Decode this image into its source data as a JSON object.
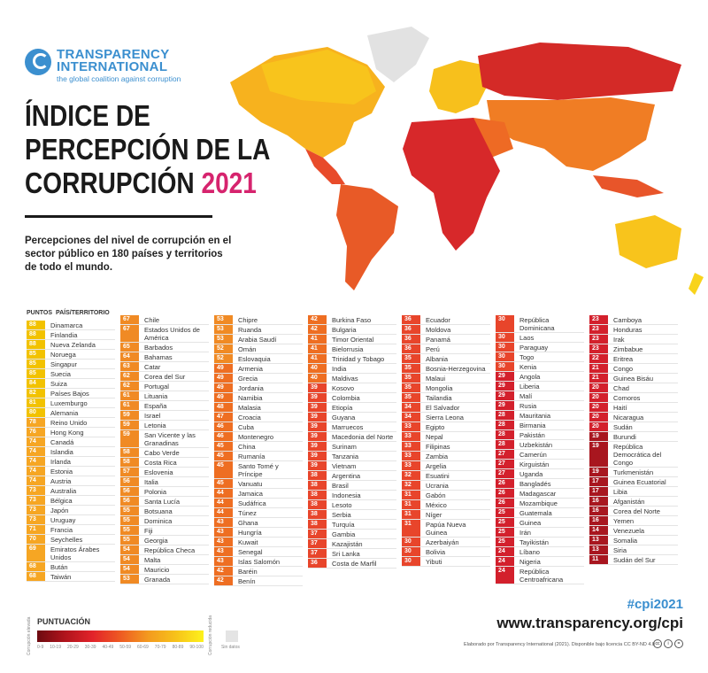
{
  "logo": {
    "line1": "TRANSPARENCY",
    "line2": "INTERNATIONAL",
    "tagline": "the global coalition against corruption"
  },
  "title": {
    "line1": "ÍNDICE DE",
    "line2": "PERCEPCIÓN DE LA",
    "line3": "CORRUPCIÓN",
    "year": "2021"
  },
  "subtitle": "Percepciones del nivel de corrupción en el sector público en 180 países y territorios de todo el mundo.",
  "table_header": {
    "score": "PUNTOS",
    "country": "PAÍS/TERRITORIO"
  },
  "colors": {
    "brand_blue": "#3b8fcf",
    "year_magenta": "#d6246e",
    "no_data": "#e4e4e4"
  },
  "columns": [
    [
      [
        88,
        "Dinamarca"
      ],
      [
        88,
        "Finlandia"
      ],
      [
        88,
        "Nueva Zelanda"
      ],
      [
        85,
        "Noruega"
      ],
      [
        85,
        "Singapur"
      ],
      [
        85,
        "Suecia"
      ],
      [
        84,
        "Suiza"
      ],
      [
        82,
        "Países Bajos"
      ],
      [
        81,
        "Luxemburgo"
      ],
      [
        80,
        "Alemania"
      ],
      [
        78,
        "Reino Unido"
      ],
      [
        76,
        "Hong Kong"
      ],
      [
        74,
        "Canadá"
      ],
      [
        74,
        "Islandia"
      ],
      [
        74,
        "Irlanda"
      ],
      [
        74,
        "Estonia"
      ],
      [
        74,
        "Austria"
      ],
      [
        73,
        "Australia"
      ],
      [
        73,
        "Bélgica"
      ],
      [
        73,
        "Japón"
      ],
      [
        73,
        "Uruguay"
      ],
      [
        71,
        "Francia"
      ],
      [
        70,
        "Seychelles"
      ],
      [
        69,
        "Emiratos Árabes Unidos"
      ],
      [
        68,
        "Bután"
      ],
      [
        68,
        "Taiwán"
      ]
    ],
    [
      [
        67,
        "Chile"
      ],
      [
        67,
        "Estados Unidos de América"
      ],
      [
        65,
        "Barbados"
      ],
      [
        64,
        "Bahamas"
      ],
      [
        63,
        "Catar"
      ],
      [
        62,
        "Corea del Sur"
      ],
      [
        62,
        "Portugal"
      ],
      [
        61,
        "Lituania"
      ],
      [
        61,
        "España"
      ],
      [
        59,
        "Israel"
      ],
      [
        59,
        "Letonia"
      ],
      [
        59,
        "San Vicente y las Granadinas"
      ],
      [
        58,
        "Cabo Verde"
      ],
      [
        58,
        "Costa Rica"
      ],
      [
        57,
        "Eslovenia"
      ],
      [
        56,
        "Italia"
      ],
      [
        56,
        "Polonia"
      ],
      [
        56,
        "Santa Lucía"
      ],
      [
        55,
        "Botsuana"
      ],
      [
        55,
        "Dominica"
      ],
      [
        55,
        "Fiji"
      ],
      [
        55,
        "Georgia"
      ],
      [
        54,
        "República Checa"
      ],
      [
        54,
        "Malta"
      ],
      [
        54,
        "Mauricio"
      ],
      [
        53,
        "Granada"
      ]
    ],
    [
      [
        53,
        "Chipre"
      ],
      [
        53,
        "Ruanda"
      ],
      [
        53,
        "Arabia Saudí"
      ],
      [
        52,
        "Omán"
      ],
      [
        52,
        "Eslovaquia"
      ],
      [
        49,
        "Armenia"
      ],
      [
        49,
        "Grecia"
      ],
      [
        49,
        "Jordania"
      ],
      [
        49,
        "Namibia"
      ],
      [
        48,
        "Malasia"
      ],
      [
        47,
        "Croacia"
      ],
      [
        46,
        "Cuba"
      ],
      [
        46,
        "Montenegro"
      ],
      [
        45,
        "China"
      ],
      [
        45,
        "Rumanía"
      ],
      [
        45,
        "Santo Tomé y Príncipe"
      ],
      [
        45,
        "Vanuatu"
      ],
      [
        44,
        "Jamaica"
      ],
      [
        44,
        "Sudáfrica"
      ],
      [
        44,
        "Túnez"
      ],
      [
        43,
        "Ghana"
      ],
      [
        43,
        "Hungría"
      ],
      [
        43,
        "Kuwait"
      ],
      [
        43,
        "Senegal"
      ],
      [
        43,
        "Islas Salomón"
      ],
      [
        42,
        "Baréin"
      ],
      [
        42,
        "Benín"
      ]
    ],
    [
      [
        42,
        "Burkina Faso"
      ],
      [
        42,
        "Bulgaria"
      ],
      [
        41,
        "Timor Oriental"
      ],
      [
        41,
        "Bielorrusia"
      ],
      [
        41,
        "Trinidad y Tobago"
      ],
      [
        40,
        "India"
      ],
      [
        40,
        "Maldivas"
      ],
      [
        39,
        "Kosovo"
      ],
      [
        39,
        "Colombia"
      ],
      [
        39,
        "Etiopía"
      ],
      [
        39,
        "Guyana"
      ],
      [
        39,
        "Marruecos"
      ],
      [
        39,
        "Macedonia del Norte"
      ],
      [
        39,
        "Surinam"
      ],
      [
        39,
        "Tanzania"
      ],
      [
        39,
        "Vietnam"
      ],
      [
        38,
        "Argentina"
      ],
      [
        38,
        "Brasil"
      ],
      [
        38,
        "Indonesia"
      ],
      [
        38,
        "Lesoto"
      ],
      [
        38,
        "Serbia"
      ],
      [
        38,
        "Turquía"
      ],
      [
        37,
        "Gambia"
      ],
      [
        37,
        "Kazajistán"
      ],
      [
        37,
        "Sri Lanka"
      ],
      [
        36,
        "Costa de Marfil"
      ]
    ],
    [
      [
        36,
        "Ecuador"
      ],
      [
        36,
        "Moldova"
      ],
      [
        36,
        "Panamá"
      ],
      [
        36,
        "Perú"
      ],
      [
        35,
        "Albania"
      ],
      [
        35,
        "Bosnia-Herzegovina"
      ],
      [
        35,
        "Malaui"
      ],
      [
        35,
        "Mongolia"
      ],
      [
        35,
        "Tailandia"
      ],
      [
        34,
        "El Salvador"
      ],
      [
        34,
        "Sierra Leona"
      ],
      [
        33,
        "Egipto"
      ],
      [
        33,
        "Nepal"
      ],
      [
        33,
        "Filipinas"
      ],
      [
        33,
        "Zambia"
      ],
      [
        33,
        "Argelia"
      ],
      [
        32,
        "Esuatini"
      ],
      [
        32,
        "Ucrania"
      ],
      [
        31,
        "Gabón"
      ],
      [
        31,
        "México"
      ],
      [
        31,
        "Níger"
      ],
      [
        31,
        "Papúa Nueva Guinea"
      ],
      [
        30,
        "Azerbaiyán"
      ],
      [
        30,
        "Bolivia"
      ],
      [
        30,
        "Yibuti"
      ]
    ],
    [
      [
        30,
        "República Dominicana"
      ],
      [
        30,
        "Laos"
      ],
      [
        30,
        "Paraguay"
      ],
      [
        30,
        "Togo"
      ],
      [
        30,
        "Kenia"
      ],
      [
        29,
        "Angola"
      ],
      [
        29,
        "Liberia"
      ],
      [
        29,
        "Malí"
      ],
      [
        29,
        "Rusia"
      ],
      [
        28,
        "Mauritania"
      ],
      [
        28,
        "Birmania"
      ],
      [
        28,
        "Pakistán"
      ],
      [
        28,
        "Uzbekistán"
      ],
      [
        27,
        "Camerún"
      ],
      [
        27,
        "Kirguistán"
      ],
      [
        27,
        "Uganda"
      ],
      [
        26,
        "Bangladés"
      ],
      [
        26,
        "Madagascar"
      ],
      [
        26,
        "Mozambique"
      ],
      [
        25,
        "Guatemala"
      ],
      [
        25,
        "Guinea"
      ],
      [
        25,
        "Irán"
      ],
      [
        25,
        "Tayikistán"
      ],
      [
        24,
        "Líbano"
      ],
      [
        24,
        "Nigeria"
      ],
      [
        24,
        "República Centroafricana"
      ]
    ],
    [
      [
        23,
        "Camboya"
      ],
      [
        23,
        "Honduras"
      ],
      [
        23,
        "Irak"
      ],
      [
        23,
        "Zimbabue"
      ],
      [
        22,
        "Eritrea"
      ],
      [
        21,
        "Congo"
      ],
      [
        21,
        "Guinea Bisáu"
      ],
      [
        20,
        "Chad"
      ],
      [
        20,
        "Comoros"
      ],
      [
        20,
        "Haití"
      ],
      [
        20,
        "Nicaragua"
      ],
      [
        20,
        "Sudán"
      ],
      [
        19,
        "Burundi"
      ],
      [
        19,
        "República Democrática del Congo"
      ],
      [
        19,
        "Turkmenistán"
      ],
      [
        17,
        "Guinea Ecuatorial"
      ],
      [
        17,
        "Libia"
      ],
      [
        16,
        "Afganistán"
      ],
      [
        16,
        "Corea del Norte"
      ],
      [
        16,
        "Yemen"
      ],
      [
        14,
        "Venezuela"
      ],
      [
        13,
        "Somalia"
      ],
      [
        13,
        "Siria"
      ],
      [
        11,
        "Sudán del Sur"
      ]
    ]
  ],
  "legend": {
    "title": "PUNTUACIÓN",
    "low_label": "Corrupción elevada",
    "high_label": "Corrupción reducida",
    "ranges": [
      "0-9",
      "10-19",
      "20-29",
      "30-39",
      "40-49",
      "50-59",
      "60-69",
      "70-79",
      "80-89",
      "90-100"
    ],
    "no_data": "Sin datos"
  },
  "footer": {
    "hashtag": "#cpi2021",
    "url": "www.transparency.org/cpi",
    "credit": "Elaborado por Transparency International (2021). Disponible bajo licencia CC BY-ND 4.0",
    "license_icons": [
      "cc-icon",
      "by-icon",
      "nd-icon"
    ]
  }
}
